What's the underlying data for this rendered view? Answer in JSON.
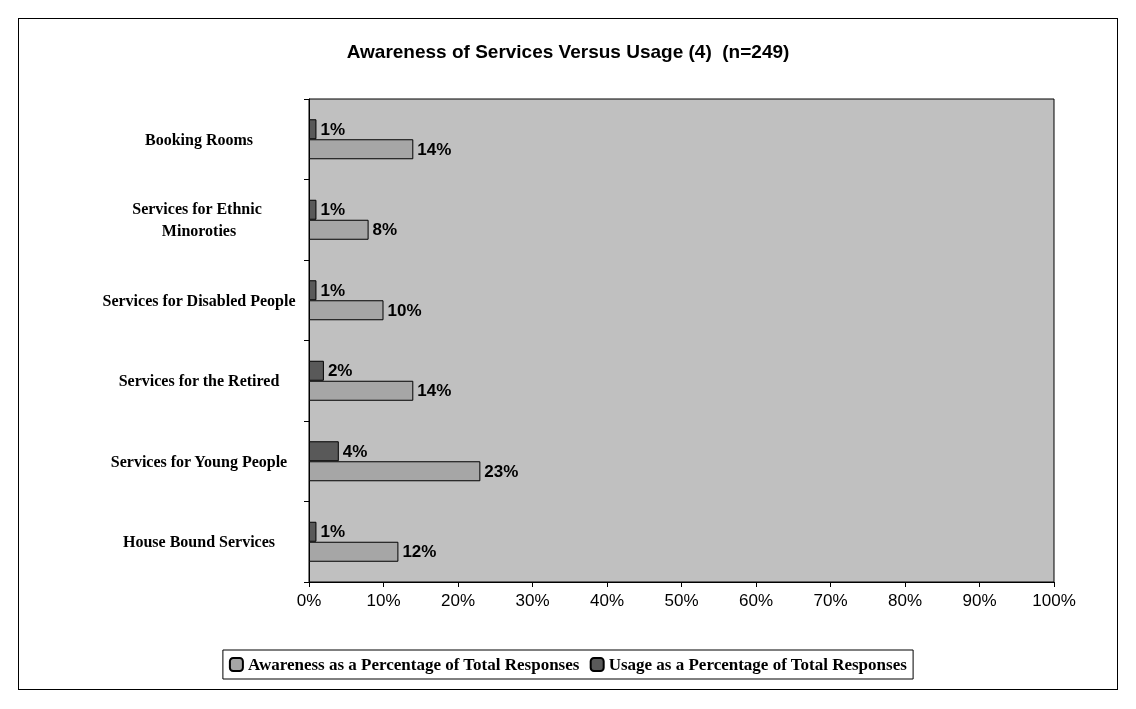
{
  "chart_data": {
    "type": "bar",
    "orientation": "horizontal",
    "title": "Awareness of Services Versus Usage (4)  (n=249)",
    "categories": [
      "Booking Rooms",
      "Services for Ethnic Minoroties",
      "Services for Disabled People",
      "Services for the Retired",
      "Services for Young People",
      "House Bound Services"
    ],
    "series": [
      {
        "name": "Awareness as a Percentage of Total Responses",
        "color": "#a6a6a6",
        "values": [
          14,
          8,
          10,
          14,
          23,
          12
        ],
        "value_labels": [
          "14%",
          "8%",
          "10%",
          "14%",
          "23%",
          "12%"
        ]
      },
      {
        "name": "Usage as a Percentage of Total Responses",
        "color": "#595959",
        "values": [
          1,
          1,
          1,
          2,
          4,
          1
        ],
        "value_labels": [
          "1%",
          "1%",
          "1%",
          "2%",
          "4%",
          "1%"
        ]
      }
    ],
    "xlim": [
      0,
      100
    ],
    "xticks": [
      {
        "value": 0,
        "label": "0%"
      },
      {
        "value": 10,
        "label": "10%"
      },
      {
        "value": 20,
        "label": "20%"
      },
      {
        "value": 30,
        "label": "30%"
      },
      {
        "value": 40,
        "label": "40%"
      },
      {
        "value": 50,
        "label": "50%"
      },
      {
        "value": 60,
        "label": "60%"
      },
      {
        "value": 70,
        "label": "70%"
      },
      {
        "value": 80,
        "label": "80%"
      },
      {
        "value": 90,
        "label": "90%"
      },
      {
        "value": 100,
        "label": "100%"
      }
    ],
    "grid": false,
    "legend": "bottom"
  }
}
